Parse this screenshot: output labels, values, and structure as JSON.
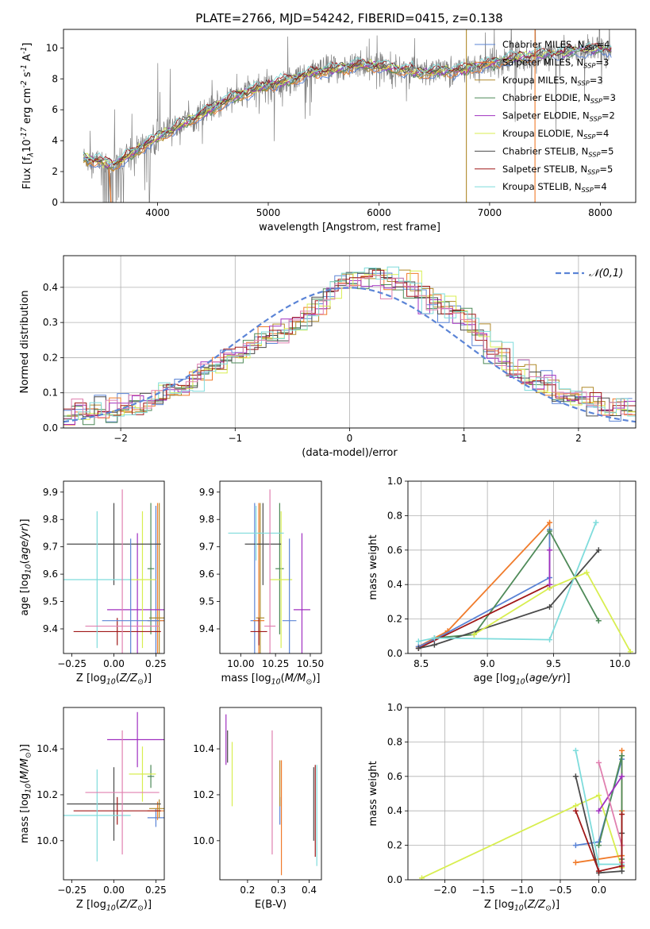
{
  "figure_title": "PLATE=2766, MJD=54242, FIBERID=0415, z=0.138",
  "colors": {
    "Chabrier MILES": "#5b84d6",
    "Salpeter MILES": "#f07b2b",
    "Kroupa MILES": "#b08a2a",
    "Chabrier ELODIE": "#4e8a58",
    "Salpeter ELODIE": "#a030c0",
    "Kroupa ELODIE": "#d8ee50",
    "Chabrier STELIB": "#4a4a4a",
    "Salpeter STELIB": "#a01818",
    "Kroupa STELIB": "#7fdcdc",
    "data": "#808080",
    "gauss": "#5b84d6",
    "extra_pink": "#e080b0"
  },
  "chart_data": [
    {
      "id": "spectrum",
      "type": "line",
      "xlabel": "wavelength [Angstrom, rest frame]",
      "ylabel": "Flux [f$_\\lambda$10$^{-17}$ erg cm$^{-2}$ s$^{-1}$ A$^{-1}$]",
      "xlim": [
        3150,
        8320
      ],
      "ylim": [
        0,
        11.2
      ],
      "xticks": [
        4000,
        5000,
        6000,
        7000,
        8000
      ],
      "yticks": [
        0,
        2,
        4,
        6,
        8,
        10
      ],
      "legend_position": "top-right",
      "continuum": {
        "x": [
          3300,
          3500,
          3600,
          3800,
          4000,
          4200,
          4400,
          4600,
          4800,
          5000,
          5200,
          5400,
          5600,
          5800,
          6000,
          6200,
          6400,
          6600,
          6800,
          7000,
          7200,
          7400,
          7600,
          7800,
          8000,
          8100
        ],
        "y": [
          2.9,
          2.6,
          2.4,
          3.3,
          4.2,
          5.0,
          5.7,
          6.5,
          7.1,
          7.6,
          7.9,
          8.4,
          8.6,
          8.9,
          8.8,
          8.6,
          8.4,
          8.5,
          8.6,
          9.0,
          9.3,
          9.5,
          9.6,
          9.8,
          9.9,
          9.8
        ]
      },
      "series": [
        {
          "name": "Chabrier MILES, N$_{SSP}$=4",
          "color_key": "Chabrier MILES"
        },
        {
          "name": "Salpeter MILES, N$_{SSP}$=3",
          "color_key": "Salpeter MILES"
        },
        {
          "name": "Kroupa MILES, N$_{SSP}$=3",
          "color_key": "Kroupa MILES"
        },
        {
          "name": "Chabrier ELODIE, N$_{SSP}$=3",
          "color_key": "Chabrier ELODIE"
        },
        {
          "name": "Salpeter ELODIE, N$_{SSP}$=2",
          "color_key": "Salpeter ELODIE"
        },
        {
          "name": "Kroupa ELODIE, N$_{SSP}$=4",
          "color_key": "Kroupa ELODIE"
        },
        {
          "name": "Chabrier STELIB, N$_{SSP}$=5",
          "color_key": "Chabrier STELIB"
        },
        {
          "name": "Salpeter STELIB, N$_{SSP}$=5",
          "color_key": "Salpeter STELIB"
        },
        {
          "name": "Kroupa STELIB, N$_{SSP}$=4",
          "color_key": "Kroupa STELIB"
        }
      ],
      "vertical_lines": [
        {
          "x": 6790,
          "color_key": "Kroupa MILES"
        },
        {
          "x": 7410,
          "color_key": "Salpeter MILES"
        }
      ]
    },
    {
      "id": "residuals",
      "type": "histogram",
      "xlabel": "(data-model)/error",
      "ylabel": "Normed distribution",
      "xlim": [
        -2.5,
        2.5
      ],
      "ylim": [
        0,
        0.49
      ],
      "xticks": [
        -2,
        -1,
        0,
        1,
        2
      ],
      "yticks": [
        0.0,
        0.1,
        0.2,
        0.3,
        0.4
      ],
      "grid": true,
      "legend_position": "top-right",
      "gauss_label": "$\\mathcal{N}(0,1)$",
      "bin_width": 0.1,
      "base_profile": [
        0.035,
        0.038,
        0.042,
        0.05,
        0.055,
        0.06,
        0.07,
        0.08,
        0.09,
        0.1,
        0.12,
        0.14,
        0.16,
        0.18,
        0.2,
        0.22,
        0.24,
        0.26,
        0.27,
        0.28,
        0.3,
        0.32,
        0.35,
        0.39,
        0.41,
        0.42,
        0.43,
        0.44,
        0.42,
        0.41,
        0.4,
        0.38,
        0.36,
        0.34,
        0.32,
        0.3,
        0.27,
        0.22,
        0.2,
        0.17,
        0.15,
        0.13,
        0.12,
        0.1,
        0.09,
        0.08,
        0.07,
        0.06,
        0.055,
        0.05
      ],
      "series_colors": [
        "Chabrier MILES",
        "Salpeter MILES",
        "Kroupa MILES",
        "Chabrier ELODIE",
        "Salpeter ELODIE",
        "Kroupa ELODIE",
        "Chabrier STELIB",
        "Salpeter STELIB",
        "Kroupa STELIB",
        "extra_pink"
      ]
    },
    {
      "id": "z_age",
      "type": "errorbar",
      "xlabel": "Z [log$_{10}$($Z/Z_\\odot$)]",
      "ylabel": "age  [log$_{10}$($age/yr$)]",
      "xlim": [
        -0.3,
        0.3
      ],
      "ylim": [
        9.31,
        9.94
      ],
      "xticks": [
        -0.25,
        0.0,
        0.25
      ],
      "xticklabels": [
        "−0.25",
        "0.00",
        "0.25"
      ],
      "yticks": [
        9.4,
        9.5,
        9.6,
        9.7,
        9.8,
        9.9
      ],
      "points": [
        {
          "x": 0.25,
          "xerr": 0.05,
          "y": 9.43,
          "yerr": 0.42,
          "c": "Chabrier MILES"
        },
        {
          "x": 0.26,
          "xerr": 0.06,
          "y": 9.43,
          "yerr": 0.43,
          "c": "Salpeter MILES"
        },
        {
          "x": 0.27,
          "xerr": 0.06,
          "y": 9.44,
          "yerr": 0.42,
          "c": "Kroupa MILES"
        },
        {
          "x": 0.22,
          "xerr": 0.02,
          "y": 9.62,
          "yerr": 0.24,
          "c": "Chabrier ELODIE"
        },
        {
          "x": 0.14,
          "xerr": 0.18,
          "y": 9.47,
          "yerr": 0.28,
          "c": "Salpeter ELODIE"
        },
        {
          "x": 0.17,
          "xerr": 0.08,
          "y": 9.58,
          "yerr": 0.25,
          "c": "Kroupa ELODIE"
        },
        {
          "x": 0.0,
          "xerr": 0.28,
          "y": 9.71,
          "yerr": 0.15,
          "c": "Chabrier STELIB"
        },
        {
          "x": 0.02,
          "xerr": 0.26,
          "y": 9.39,
          "yerr": 0.05,
          "c": "Salpeter STELIB"
        },
        {
          "x": -0.1,
          "xerr": 0.2,
          "y": 9.58,
          "yerr": 0.25,
          "c": "Kroupa STELIB"
        },
        {
          "x": 0.05,
          "xerr": 0.22,
          "y": 9.41,
          "yerr": 0.5,
          "c": "extra_pink"
        },
        {
          "x": 0.1,
          "xerr": 0.17,
          "y": 9.43,
          "yerr": 0.3,
          "c": "Chabrier MILES"
        }
      ]
    },
    {
      "id": "mass_age",
      "type": "errorbar",
      "xlabel": "mass [log$_{10}$($M/M_\\odot$)]",
      "ylabel": "",
      "xlim": [
        9.85,
        10.58
      ],
      "ylim": [
        9.31,
        9.94
      ],
      "xticks": [
        10.0,
        10.25,
        10.5
      ],
      "xticklabels": [
        "10.00",
        "10.25",
        "10.50"
      ],
      "yticks": [
        9.4,
        9.5,
        9.6,
        9.7,
        9.8,
        9.9
      ],
      "points": [
        {
          "x": 10.1,
          "xerr": 0.03,
          "y": 9.43,
          "yerr": 0.43,
          "c": "Chabrier MILES"
        },
        {
          "x": 10.13,
          "xerr": 0.04,
          "y": 9.43,
          "yerr": 0.43,
          "c": "Salpeter MILES"
        },
        {
          "x": 10.14,
          "xerr": 0.03,
          "y": 9.44,
          "yerr": 0.42,
          "c": "Kroupa MILES"
        },
        {
          "x": 10.28,
          "xerr": 0.03,
          "y": 9.62,
          "yerr": 0.24,
          "c": "Chabrier ELODIE"
        },
        {
          "x": 10.44,
          "xerr": 0.06,
          "y": 9.47,
          "yerr": 0.28,
          "c": "Salpeter ELODIE"
        },
        {
          "x": 10.29,
          "xerr": 0.08,
          "y": 9.58,
          "yerr": 0.25,
          "c": "Kroupa ELODIE"
        },
        {
          "x": 10.16,
          "xerr": 0.13,
          "y": 9.71,
          "yerr": 0.15,
          "c": "Chabrier STELIB"
        },
        {
          "x": 10.13,
          "xerr": 0.06,
          "y": 9.39,
          "yerr": 0.05,
          "c": "Salpeter STELIB"
        },
        {
          "x": 10.11,
          "xerr": 0.2,
          "y": 9.75,
          "yerr": 0.1,
          "c": "Kroupa STELIB"
        },
        {
          "x": 10.21,
          "xerr": 0.04,
          "y": 9.41,
          "yerr": 0.5,
          "c": "extra_pink"
        },
        {
          "x": 10.35,
          "xerr": 0.05,
          "y": 9.43,
          "yerr": 0.3,
          "c": "Chabrier MILES"
        }
      ]
    },
    {
      "id": "age_weight",
      "type": "line",
      "xlabel": "age  [log$_{10}$($age/yr$)]",
      "ylabel": "mass weight",
      "xlim": [
        8.4,
        10.12
      ],
      "ylim": [
        0,
        1.0
      ],
      "xticks": [
        8.5,
        9.0,
        9.5,
        10.0
      ],
      "yticks": [
        0.0,
        0.2,
        0.4,
        0.6,
        0.8,
        1.0
      ],
      "grid": true,
      "lines": [
        {
          "c": "Salpeter MILES",
          "pts": [
            [
              8.48,
              0.04
            ],
            [
              8.7,
              0.13
            ],
            [
              9.47,
              0.76
            ],
            [
              9.47,
              0.4
            ]
          ]
        },
        {
          "c": "Chabrier MILES",
          "pts": [
            [
              8.48,
              0.04
            ],
            [
              8.6,
              0.08
            ],
            [
              9.47,
              0.44
            ],
            [
              9.47,
              0.72
            ]
          ]
        },
        {
          "c": "Chabrier ELODIE",
          "pts": [
            [
              8.6,
              0.09
            ],
            [
              8.9,
              0.11
            ],
            [
              9.47,
              0.71
            ],
            [
              9.84,
              0.19
            ]
          ]
        },
        {
          "c": "Salpeter STELIB",
          "pts": [
            [
              8.48,
              0.03
            ],
            [
              9.47,
              0.4
            ],
            [
              9.47,
              0.38
            ]
          ]
        },
        {
          "c": "Chabrier STELIB",
          "pts": [
            [
              8.48,
              0.03
            ],
            [
              8.6,
              0.05
            ],
            [
              9.47,
              0.27
            ],
            [
              9.84,
              0.6
            ]
          ]
        },
        {
          "c": "Kroupa STELIB",
          "pts": [
            [
              8.48,
              0.07
            ],
            [
              8.6,
              0.09
            ],
            [
              9.47,
              0.08
            ],
            [
              9.82,
              0.76
            ]
          ]
        },
        {
          "c": "Kroupa ELODIE",
          "pts": [
            [
              8.9,
              0.11
            ],
            [
              9.47,
              0.38
            ],
            [
              9.75,
              0.47
            ],
            [
              10.08,
              0.01
            ]
          ]
        },
        {
          "c": "Salpeter ELODIE",
          "pts": [
            [
              9.47,
              0.6
            ],
            [
              9.47,
              0.4
            ]
          ]
        }
      ]
    },
    {
      "id": "z_mass",
      "type": "errorbar",
      "xlabel": "Z [log$_{10}$($Z/Z_\\odot$)]",
      "ylabel": "mass [log$_{10}$($M/M_\\odot$)]",
      "xlim": [
        -0.3,
        0.3
      ],
      "ylim": [
        9.83,
        10.58
      ],
      "xticks": [
        -0.25,
        0.0,
        0.25
      ],
      "xticklabels": [
        "−0.25",
        "0.00",
        "0.25"
      ],
      "yticks": [
        10.0,
        10.2,
        10.4
      ],
      "points": [
        {
          "x": 0.25,
          "xerr": 0.05,
          "y": 10.1,
          "yerr": 0.04,
          "c": "Chabrier MILES"
        },
        {
          "x": 0.26,
          "xerr": 0.06,
          "y": 10.13,
          "yerr": 0.04,
          "c": "Salpeter MILES"
        },
        {
          "x": 0.27,
          "xerr": 0.06,
          "y": 10.14,
          "yerr": 0.04,
          "c": "Kroupa MILES"
        },
        {
          "x": 0.22,
          "xerr": 0.02,
          "y": 10.28,
          "yerr": 0.05,
          "c": "Chabrier ELODIE"
        },
        {
          "x": 0.14,
          "xerr": 0.18,
          "y": 10.44,
          "yerr": 0.12,
          "c": "Salpeter ELODIE"
        },
        {
          "x": 0.17,
          "xerr": 0.08,
          "y": 10.29,
          "yerr": 0.12,
          "c": "Kroupa ELODIE"
        },
        {
          "x": 0.0,
          "xerr": 0.28,
          "y": 10.16,
          "yerr": 0.16,
          "c": "Chabrier STELIB"
        },
        {
          "x": 0.02,
          "xerr": 0.26,
          "y": 10.13,
          "yerr": 0.06,
          "c": "Salpeter STELIB"
        },
        {
          "x": -0.1,
          "xerr": 0.2,
          "y": 10.11,
          "yerr": 0.2,
          "c": "Kroupa STELIB"
        },
        {
          "x": 0.05,
          "xerr": 0.22,
          "y": 10.21,
          "yerr": 0.27,
          "c": "extra_pink"
        }
      ]
    },
    {
      "id": "ebv_mass",
      "type": "errorbar",
      "xlabel": "E(B-V)",
      "ylabel": "",
      "xlim": [
        0.11,
        0.44
      ],
      "ylim": [
        9.83,
        10.58
      ],
      "xticks": [
        0.2,
        0.3,
        0.4
      ],
      "yticks": [
        10.0,
        10.2,
        10.4
      ],
      "points": [
        {
          "x": 0.13,
          "y": 10.44,
          "yerr": 0.11,
          "c": "Salpeter ELODIE"
        },
        {
          "x": 0.135,
          "y": 10.41,
          "yerr": 0.07,
          "c": "Chabrier STELIB"
        },
        {
          "x": 0.15,
          "y": 10.29,
          "yerr": 0.14,
          "c": "Kroupa ELODIE"
        },
        {
          "x": 0.28,
          "y": 10.21,
          "yerr": 0.27,
          "c": "extra_pink"
        },
        {
          "x": 0.305,
          "y": 10.13,
          "yerr": 0.06,
          "c": "Chabrier MILES"
        },
        {
          "x": 0.31,
          "y": 10.1,
          "yerr": 0.25,
          "c": "Salpeter MILES"
        },
        {
          "x": 0.305,
          "y": 10.25,
          "yerr": 0.1,
          "c": "Kroupa MILES"
        },
        {
          "x": 0.42,
          "y": 10.13,
          "yerr": 0.2,
          "c": "Salpeter STELIB"
        },
        {
          "x": 0.415,
          "y": 10.16,
          "yerr": 0.16,
          "c": "Chabrier STELIB"
        },
        {
          "x": 0.425,
          "y": 10.11,
          "yerr": 0.22,
          "c": "Kroupa STELIB"
        }
      ]
    },
    {
      "id": "z_weight",
      "type": "line",
      "xlabel": "Z [log$_{10}$($Z/Z_\\odot$)]",
      "ylabel": "mass weight",
      "xlim": [
        -2.48,
        0.48
      ],
      "ylim": [
        0,
        1.0
      ],
      "xticks": [
        -2.0,
        -1.5,
        -1.0,
        -0.5,
        0.0
      ],
      "xticklabels": [
        "−2.0",
        "−1.5",
        "−1.0",
        "−0.5",
        "0.0"
      ],
      "yticks": [
        0.0,
        0.2,
        0.4,
        0.6,
        0.8,
        1.0
      ],
      "grid": true,
      "lines": [
        {
          "c": "Kroupa ELODIE",
          "pts": [
            [
              -2.3,
              0.01
            ],
            [
              -0.3,
              0.43
            ],
            [
              0.0,
              0.49
            ],
            [
              0.3,
              0.07
            ]
          ]
        },
        {
          "c": "Salpeter MILES",
          "pts": [
            [
              -0.3,
              0.1
            ],
            [
              0.3,
              0.14
            ],
            [
              0.3,
              0.75
            ],
            [
              0.3,
              0.4
            ]
          ]
        },
        {
          "c": "Chabrier MILES",
          "pts": [
            [
              -0.3,
              0.2
            ],
            [
              0.0,
              0.22
            ],
            [
              0.3,
              0.7
            ]
          ]
        },
        {
          "c": "Chabrier ELODIE",
          "pts": [
            [
              0.0,
              0.2
            ],
            [
              0.3,
              0.72
            ],
            [
              0.3,
              0.12
            ]
          ]
        },
        {
          "c": "Salpeter ELODIE",
          "pts": [
            [
              0.0,
              0.4
            ],
            [
              0.3,
              0.6
            ]
          ]
        },
        {
          "c": "Kroupa STELIB",
          "pts": [
            [
              -0.3,
              0.75
            ],
            [
              0.0,
              0.09
            ],
            [
              0.3,
              0.09
            ]
          ]
        },
        {
          "c": "extra_pink",
          "pts": [
            [
              0.0,
              0.68
            ],
            [
              0.3,
              0.2
            ],
            [
              0.3,
              0.1
            ]
          ]
        },
        {
          "c": "Chabrier STELIB",
          "pts": [
            [
              -0.3,
              0.6
            ],
            [
              0.0,
              0.04
            ],
            [
              0.3,
              0.05
            ],
            [
              0.3,
              0.27
            ]
          ]
        },
        {
          "c": "Salpeter STELIB",
          "pts": [
            [
              -0.3,
              0.4
            ],
            [
              0.0,
              0.05
            ],
            [
              0.3,
              0.08
            ],
            [
              0.3,
              0.38
            ]
          ]
        }
      ]
    }
  ]
}
